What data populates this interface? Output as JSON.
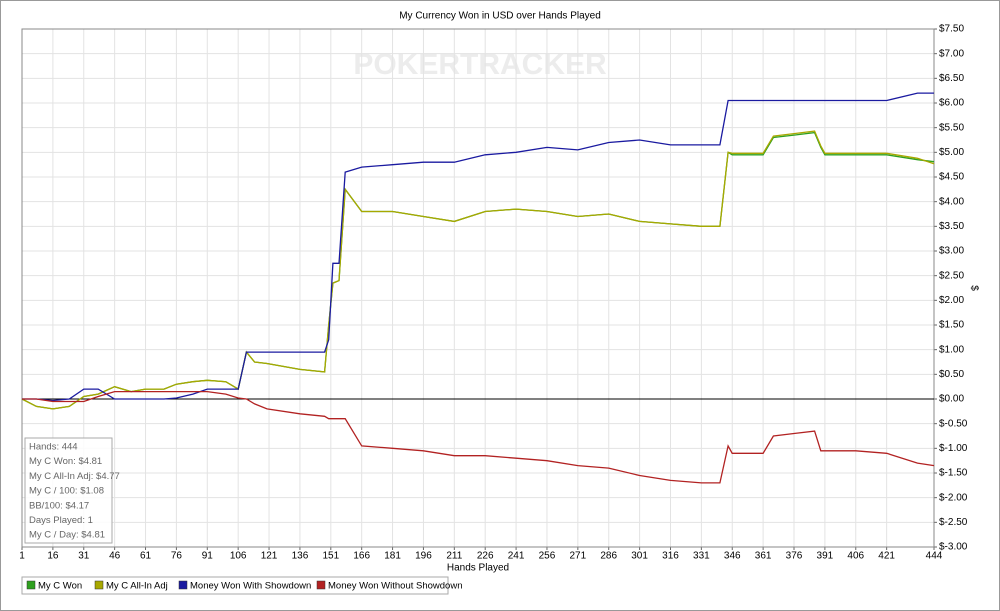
{
  "chart_data": {
    "type": "line",
    "title": "My Currency Won in USD over Hands Played",
    "watermark": "POKERTRACKER",
    "x_label": "Hands Played",
    "y_label": "$",
    "grid": true,
    "legend": "bottom",
    "stats": [
      "Hands: 444",
      "My C Won: $4.81",
      "My C All-In Adj: $4.77",
      "My C / 100: $1.08",
      "BB/100: $4.17",
      "Days Played: 1",
      "My C / Day: $4.81"
    ],
    "xlim": [
      1,
      444
    ],
    "xticks": [
      1,
      16,
      31,
      46,
      61,
      76,
      91,
      106,
      121,
      136,
      151,
      166,
      181,
      196,
      211,
      226,
      241,
      256,
      271,
      286,
      301,
      316,
      331,
      346,
      361,
      376,
      391,
      406,
      421,
      444
    ],
    "ylim": [
      -3,
      7.5
    ],
    "yticks": [
      {
        "value": -3,
        "label": "$-3.00"
      },
      {
        "value": -2.5,
        "label": "$-2.50"
      },
      {
        "value": -2,
        "label": "$-2.00"
      },
      {
        "value": -1.5,
        "label": "$-1.50"
      },
      {
        "value": -1,
        "label": "$-1.00"
      },
      {
        "value": -0.5,
        "label": "$-0.50"
      },
      {
        "value": 0,
        "label": "$0.00"
      },
      {
        "value": 0.5,
        "label": "$0.50"
      },
      {
        "value": 1,
        "label": "$1.00"
      },
      {
        "value": 1.5,
        "label": "$1.50"
      },
      {
        "value": 2,
        "label": "$2.00"
      },
      {
        "value": 2.5,
        "label": "$2.50"
      },
      {
        "value": 3,
        "label": "$3.00"
      },
      {
        "value": 3.5,
        "label": "$3.50"
      },
      {
        "value": 4,
        "label": "$4.00"
      },
      {
        "value": 4.5,
        "label": "$4.50"
      },
      {
        "value": 5,
        "label": "$5.00"
      },
      {
        "value": 5.5,
        "label": "$5.50"
      },
      {
        "value": 6,
        "label": "$6.00"
      },
      {
        "value": 6.5,
        "label": "$6.50"
      },
      {
        "value": 7,
        "label": "$7.00"
      },
      {
        "value": 7.5,
        "label": "$7.50"
      }
    ],
    "x": [
      1,
      8,
      16,
      24,
      31,
      38,
      46,
      54,
      61,
      70,
      76,
      84,
      91,
      100,
      106,
      110,
      114,
      120,
      136,
      148,
      150,
      152,
      155,
      158,
      166,
      181,
      196,
      211,
      226,
      241,
      256,
      271,
      286,
      301,
      316,
      331,
      340,
      344,
      346,
      361,
      366,
      376,
      386,
      389,
      391,
      406,
      421,
      436,
      444
    ],
    "series": [
      {
        "name": "My C Won",
        "color": "#2ea01e",
        "values": [
          0,
          -0.15,
          -0.2,
          -0.15,
          0.05,
          0.1,
          0.25,
          0.15,
          0.2,
          0.2,
          0.3,
          0.35,
          0.38,
          0.35,
          0.2,
          0.95,
          0.75,
          0.72,
          0.6,
          0.55,
          1.5,
          2.35,
          2.4,
          4.25,
          3.8,
          3.8,
          3.7,
          3.6,
          3.8,
          3.85,
          3.8,
          3.7,
          3.75,
          3.6,
          3.55,
          3.5,
          3.5,
          5.0,
          4.95,
          4.95,
          5.3,
          5.35,
          5.4,
          5.1,
          4.95,
          4.95,
          4.95,
          4.85,
          4.81
        ]
      },
      {
        "name": "My C All-In Adj",
        "color": "#a8a800",
        "values": [
          0,
          -0.15,
          -0.2,
          -0.15,
          0.05,
          0.1,
          0.25,
          0.15,
          0.2,
          0.2,
          0.3,
          0.35,
          0.38,
          0.35,
          0.2,
          0.95,
          0.75,
          0.72,
          0.6,
          0.55,
          1.5,
          2.35,
          2.4,
          4.25,
          3.8,
          3.8,
          3.7,
          3.6,
          3.8,
          3.85,
          3.8,
          3.7,
          3.75,
          3.6,
          3.55,
          3.5,
          3.5,
          5.0,
          4.98,
          4.98,
          5.33,
          5.38,
          5.43,
          5.13,
          4.98,
          4.98,
          4.98,
          4.88,
          4.77
        ]
      },
      {
        "name": "Money Won With Showdown",
        "color": "#1a1aa0",
        "values": [
          0,
          0,
          -0.03,
          0,
          0.2,
          0.2,
          0,
          0,
          0,
          0,
          0.02,
          0.1,
          0.2,
          0.2,
          0.2,
          0.95,
          0.95,
          0.95,
          0.95,
          0.95,
          1.2,
          2.75,
          2.75,
          4.6,
          4.7,
          4.75,
          4.8,
          4.8,
          4.95,
          5.0,
          5.1,
          5.05,
          5.2,
          5.25,
          5.15,
          5.15,
          5.15,
          6.05,
          6.05,
          6.05,
          6.05,
          6.05,
          6.05,
          6.05,
          6.05,
          6.05,
          6.05,
          6.2,
          6.2
        ]
      },
      {
        "name": "Money Won Without Showdown",
        "color": "#b22222",
        "values": [
          0,
          0,
          -0.05,
          -0.05,
          -0.05,
          0.05,
          0.15,
          0.15,
          0.15,
          0.15,
          0.15,
          0.15,
          0.15,
          0.1,
          0.02,
          0,
          -0.1,
          -0.2,
          -0.3,
          -0.35,
          -0.4,
          -0.4,
          -0.4,
          -0.4,
          -0.95,
          -1.0,
          -1.05,
          -1.15,
          -1.15,
          -1.2,
          -1.25,
          -1.35,
          -1.4,
          -1.55,
          -1.65,
          -1.7,
          -1.7,
          -0.95,
          -1.1,
          -1.1,
          -0.75,
          -0.7,
          -0.65,
          -1.05,
          -1.05,
          -1.05,
          -1.1,
          -1.3,
          -1.35
        ]
      }
    ]
  }
}
